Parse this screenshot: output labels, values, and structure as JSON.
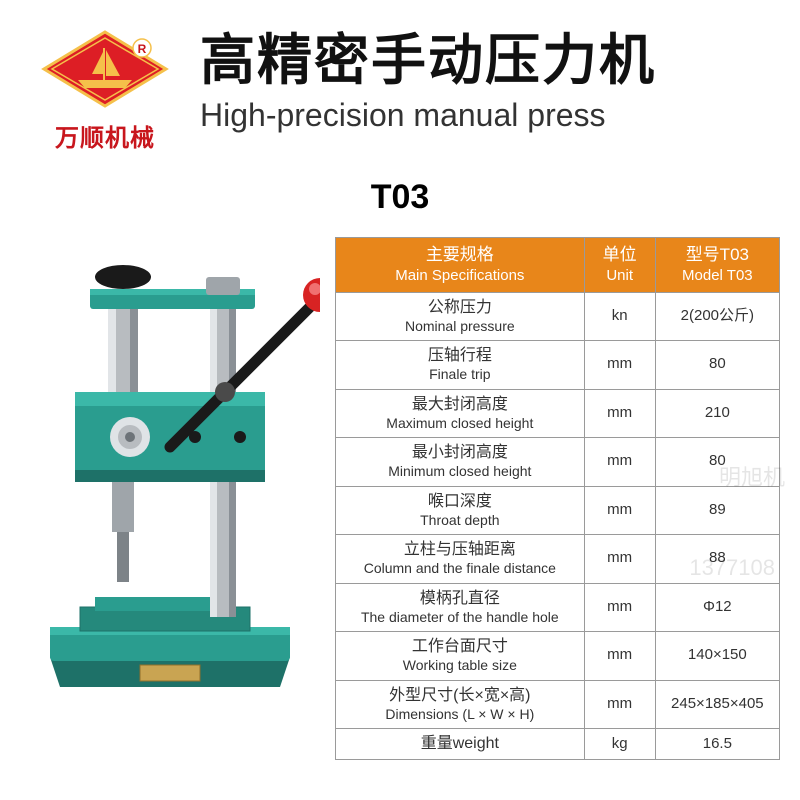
{
  "logo": {
    "brand_text": "万顺机械",
    "badge_bg": "#dd1e25",
    "badge_border": "#f5c04a",
    "brand_color": "#c8161d"
  },
  "title": {
    "cn": "高精密手动压力机",
    "en": "High-precision manual press"
  },
  "model": "T03",
  "table": {
    "header_bg": "#e8861a",
    "border_color": "#9a9a9a",
    "columns": [
      {
        "cn": "主要规格",
        "en": "Main Specifications"
      },
      {
        "cn": "单位",
        "en": "Unit"
      },
      {
        "cn": "型号T03",
        "en": "Model T03"
      }
    ],
    "rows": [
      {
        "spec_cn": "公称压力",
        "spec_en": "Nominal pressure",
        "unit": "kn",
        "value": "2(200公斤)"
      },
      {
        "spec_cn": "压轴行程",
        "spec_en": "Finale trip",
        "unit": "mm",
        "value": "80"
      },
      {
        "spec_cn": "最大封闭高度",
        "spec_en": "Maximum closed height",
        "unit": "mm",
        "value": "210"
      },
      {
        "spec_cn": "最小封闭高度",
        "spec_en": "Minimum closed height",
        "unit": "mm",
        "value": "80"
      },
      {
        "spec_cn": "喉口深度",
        "spec_en": "Throat depth",
        "unit": "mm",
        "value": "89"
      },
      {
        "spec_cn": "立柱与压轴距离",
        "spec_en": "Column and the finale distance",
        "unit": "mm",
        "value": "88"
      },
      {
        "spec_cn": "模柄孔直径",
        "spec_en": "The diameter of the handle hole",
        "unit": "mm",
        "value": "Φ12"
      },
      {
        "spec_cn": "工作台面尺寸",
        "spec_en": "Working table size",
        "unit": "mm",
        "value": "140×150"
      },
      {
        "spec_cn": "外型尺寸(长×宽×高)",
        "spec_en": "Dimensions (L × W × H)",
        "unit": "mm",
        "value": "245×185×405"
      },
      {
        "spec_cn": "重量weight",
        "spec_en": "",
        "unit": "kg",
        "value": "16.5"
      }
    ]
  },
  "press_colors": {
    "body": "#2a9d8f",
    "body_shadow": "#1e7168",
    "steel": "#b8bcc0",
    "steel_dark": "#6d7378",
    "handle_black": "#1a1a1a",
    "ball_red": "#d82323",
    "label_gold": "#c9a452"
  },
  "watermark1": "明旭机",
  "watermark2": "1377108"
}
